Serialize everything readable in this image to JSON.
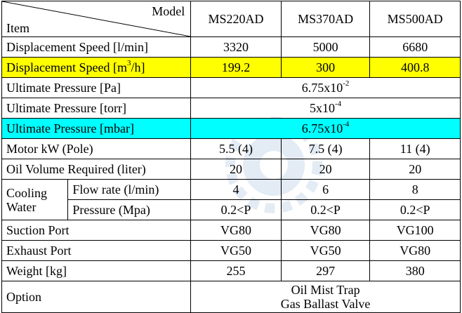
{
  "header": {
    "model_label": "Model",
    "item_label": "Item",
    "models": [
      "MS220AD",
      "MS370AD",
      "MS500AD"
    ]
  },
  "rows": {
    "displacement_lmin": {
      "label": "Displacement Speed  [l/min]",
      "values": [
        "3320",
        "5000",
        "6680"
      ]
    },
    "displacement_m3h": {
      "label_pre": "Displacement Speed [m",
      "label_sup": "3",
      "label_post": "/h]",
      "values": [
        "199.2",
        "300",
        "400.8"
      ],
      "highlight": "#ffff00"
    },
    "ultimate_pa": {
      "label": "Ultimate Pressure [Pa]",
      "value_base": "6.75x10",
      "value_exp": "-2"
    },
    "ultimate_torr": {
      "label": "Ultimate Pressure [torr]",
      "value_base": "5x10",
      "value_exp": "-4"
    },
    "ultimate_mbar": {
      "label": "Ultimate Pressure [mbar]",
      "value_base": "6.75x10",
      "value_exp": "-4",
      "highlight": "#00ffff"
    },
    "motor": {
      "label": "Motor kW (Pole)",
      "values": [
        "5.5 (4)",
        "7.5 (4)",
        "11 (4)"
      ]
    },
    "oil": {
      "label": "Oil Volume Required (liter)",
      "values": [
        "20",
        "20",
        "20"
      ]
    },
    "cooling": {
      "label_line1": "Cooling",
      "label_line2": "Water",
      "flow": {
        "label": "Flow rate (l/min)",
        "values": [
          "4",
          "6",
          "8"
        ]
      },
      "pressure": {
        "label": "Pressure (Mpa)",
        "values": [
          "0.2<P",
          "0.2<P",
          "0.2<P"
        ]
      }
    },
    "suction": {
      "label": "Suction Port",
      "values": [
        "VG80",
        "VG80",
        "VG100"
      ]
    },
    "exhaust": {
      "label": "Exhaust Port",
      "values": [
        "VG50",
        "VG50",
        "VG80"
      ]
    },
    "weight": {
      "label": "Weight [kg]",
      "values": [
        "255",
        "297",
        "380"
      ]
    },
    "option": {
      "label": "Option",
      "lines": [
        "Oil Mist Trap",
        "Gas Ballast Valve"
      ]
    }
  },
  "watermark": {
    "icon": "gear-logo-icon",
    "color": "#1f5fa8"
  }
}
